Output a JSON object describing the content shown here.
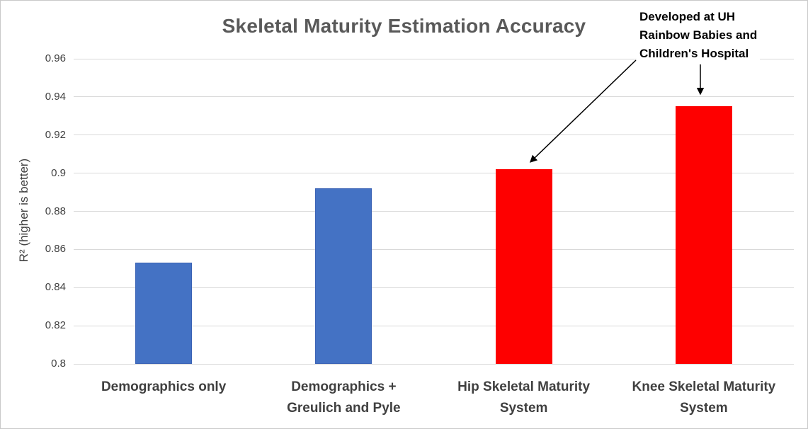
{
  "chart_data": {
    "type": "bar",
    "title": "Skeletal Maturity Estimation Accuracy",
    "ylabel": "R² (higher is better)",
    "xlabel": "",
    "categories": [
      "Demographics only",
      "Demographics +\nGreulich and Pyle",
      "Hip Skeletal Maturity\nSystem",
      "Knee Skeletal Maturity\nSystem"
    ],
    "values": [
      0.853,
      0.892,
      0.902,
      0.935
    ],
    "bar_colors": [
      "#4472C4",
      "#4472C4",
      "#FE0000",
      "#FE0000"
    ],
    "ylim": [
      0.8,
      0.96
    ],
    "ytick_labels": [
      "0.8",
      "0.82",
      "0.84",
      "0.86",
      "0.88",
      "0.9",
      "0.92",
      "0.94",
      "0.96"
    ],
    "grid": true,
    "legend_position": "none",
    "annotation": {
      "lines": [
        "Developed at UH",
        "Rainbow Babies and",
        "Children's Hospital"
      ],
      "points_to": [
        "Hip Skeletal Maturity System",
        "Knee Skeletal Maturity System"
      ]
    }
  },
  "colors": {
    "blue_bar": "#4472C4",
    "blue_bar_border": "#3A62B5",
    "red_bar": "#FE0000",
    "title_text": "#595959",
    "axis_text": "#404040",
    "annotation_text": "#000000",
    "gridline": "#D9D9D9",
    "arrow": "#000000",
    "background": "#FFFFFF",
    "border": "#C9C9C9"
  }
}
